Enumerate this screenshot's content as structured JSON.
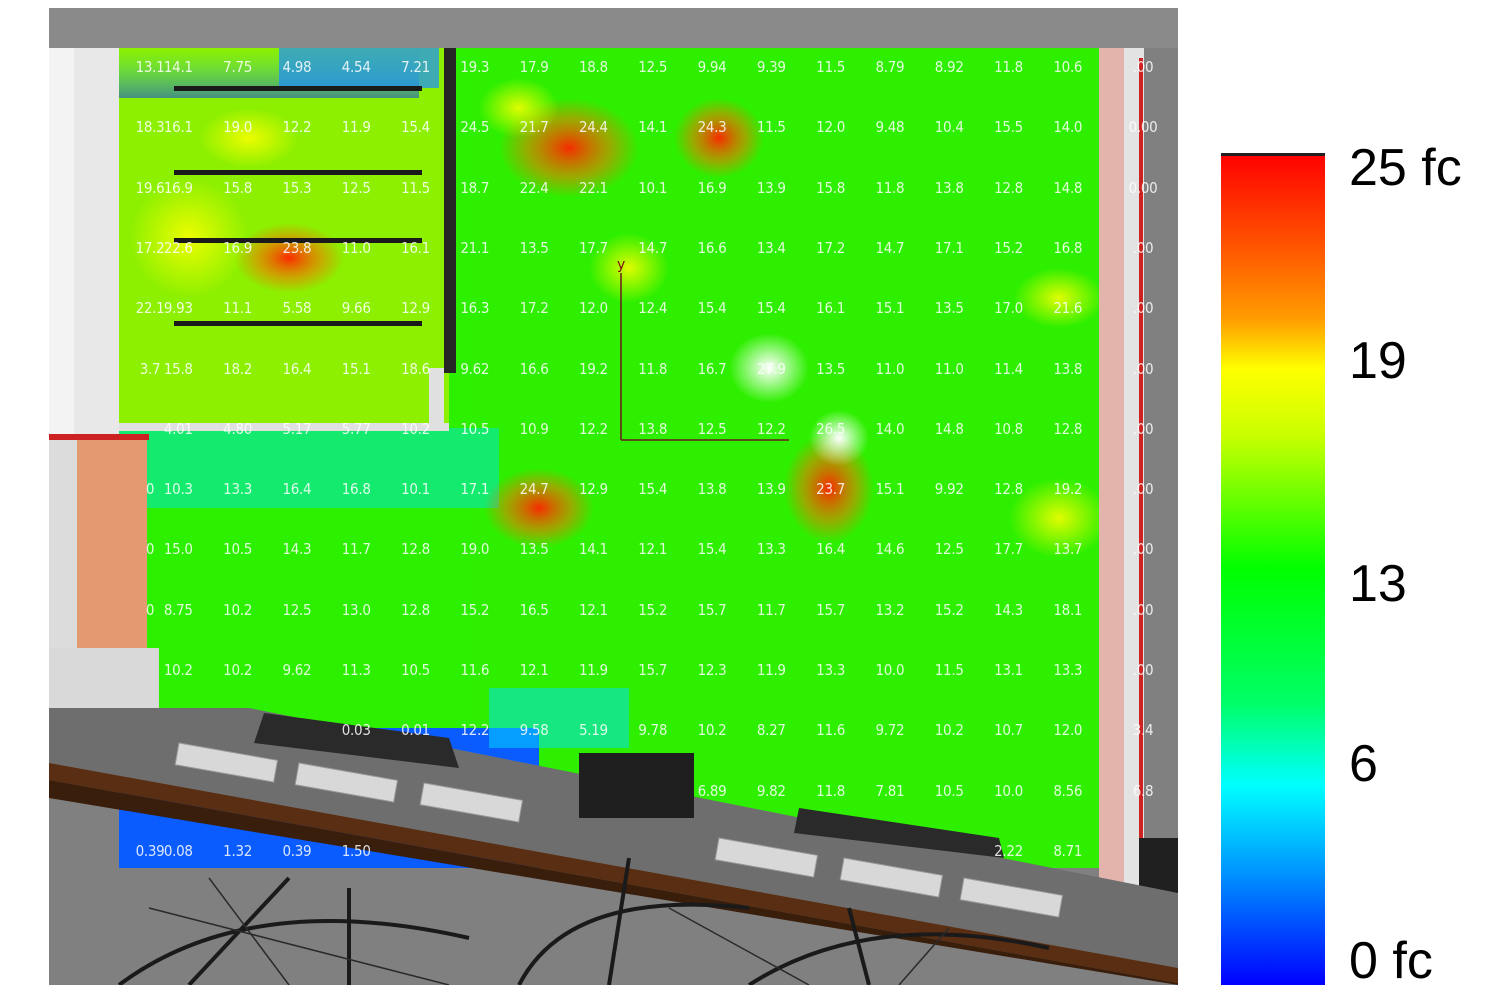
{
  "legend": {
    "unit": "fc",
    "labels": [
      "25 fc",
      "19",
      "13",
      "6",
      "0 fc"
    ],
    "colors": [
      "#ff0000",
      "#ffff00",
      "#00ff00",
      "#00ffff",
      "#0000ff"
    ]
  },
  "illuminance_grid": [
    [
      "13.1",
      "14.1",
      "7.75",
      "4.98",
      "4.54",
      "7.21",
      "19.3",
      "17.9",
      "18.8",
      "12.5",
      "9.94",
      "9.39",
      "11.5",
      "8.79",
      "8.92",
      "11.8",
      "10.6",
      ".00"
    ],
    [
      "18.3",
      "16.1",
      "19.0",
      "12.2",
      "11.9",
      "15.4",
      "24.5",
      "21.7",
      "24.4",
      "14.1",
      "24.3",
      "11.5",
      "12.0",
      "9.48",
      "10.4",
      "15.5",
      "14.0",
      "0.00"
    ],
    [
      "19.6",
      "16.9",
      "15.8",
      "15.3",
      "12.5",
      "11.5",
      "18.7",
      "22.4",
      "22.1",
      "10.1",
      "16.9",
      "13.9",
      "15.8",
      "11.8",
      "13.8",
      "12.8",
      "14.8",
      "0.00"
    ],
    [
      "17.2",
      "22.6",
      "16.9",
      "23.8",
      "11.0",
      "16.1",
      "21.1",
      "13.5",
      "17.7",
      "14.7",
      "16.6",
      "13.4",
      "17.2",
      "14.7",
      "17.1",
      "15.2",
      "16.8",
      ".00"
    ],
    [
      "22.1",
      "9.93",
      "11.1",
      "5.58",
      "9.66",
      "12.9",
      "16.3",
      "17.2",
      "12.0",
      "12.4",
      "15.4",
      "15.4",
      "16.1",
      "15.1",
      "13.5",
      "17.0",
      "21.6",
      ".00"
    ],
    [
      "3.7",
      "15.8",
      "18.2",
      "16.4",
      "15.1",
      "18.6",
      "9.62",
      "16.6",
      "19.2",
      "11.8",
      "16.7",
      "27.9",
      "13.5",
      "11.0",
      "11.0",
      "11.4",
      "13.8",
      ".00"
    ],
    [
      "",
      "4.01",
      "4.80",
      "5.17",
      "5.77",
      "10.2",
      "10.5",
      "10.9",
      "12.2",
      "13.8",
      "12.5",
      "12.2",
      "26.5",
      "14.0",
      "14.8",
      "10.8",
      "12.8",
      ".00"
    ],
    [
      "0",
      "10.3",
      "13.3",
      "16.4",
      "16.8",
      "10.1",
      "17.1",
      "24.7",
      "12.9",
      "15.4",
      "13.8",
      "13.9",
      "23.7",
      "15.1",
      "9.92",
      "12.8",
      "19.2",
      ".00"
    ],
    [
      "0",
      "15.0",
      "10.5",
      "14.3",
      "11.7",
      "12.8",
      "19.0",
      "13.5",
      "14.1",
      "12.1",
      "15.4",
      "13.3",
      "16.4",
      "14.6",
      "12.5",
      "17.7",
      "13.7",
      ".00"
    ],
    [
      "0",
      "8.75",
      "10.2",
      "12.5",
      "13.0",
      "12.8",
      "15.2",
      "16.5",
      "12.1",
      "15.2",
      "15.7",
      "11.7",
      "15.7",
      "13.2",
      "15.2",
      "14.3",
      "18.1",
      ".00"
    ],
    [
      "",
      "10.2",
      "10.2",
      "9.62",
      "11.3",
      "10.5",
      "11.6",
      "12.1",
      "11.9",
      "15.7",
      "12.3",
      "11.9",
      "13.3",
      "10.0",
      "11.5",
      "13.1",
      "13.3",
      ".00"
    ],
    [
      "",
      "",
      "",
      "",
      "0.03",
      "0.01",
      "12.2",
      "9.58",
      "5.19",
      "9.78",
      "10.2",
      "8.27",
      "11.6",
      "9.72",
      "10.2",
      "10.7",
      "12.0",
      "3.4"
    ],
    [
      "",
      "",
      "",
      "",
      "",
      "",
      "",
      "",
      "",
      "",
      "6.89",
      "9.82",
      "11.8",
      "7.81",
      "10.5",
      "10.0",
      "8.56",
      "6.8"
    ],
    [
      "0.39",
      "0.08",
      "1.32",
      "0.39",
      "1.50",
      "",
      "",
      "",
      "",
      "",
      "",
      "",
      "",
      "",
      "",
      "2.22",
      "8.71",
      ""
    ]
  ],
  "axis_label": "y"
}
